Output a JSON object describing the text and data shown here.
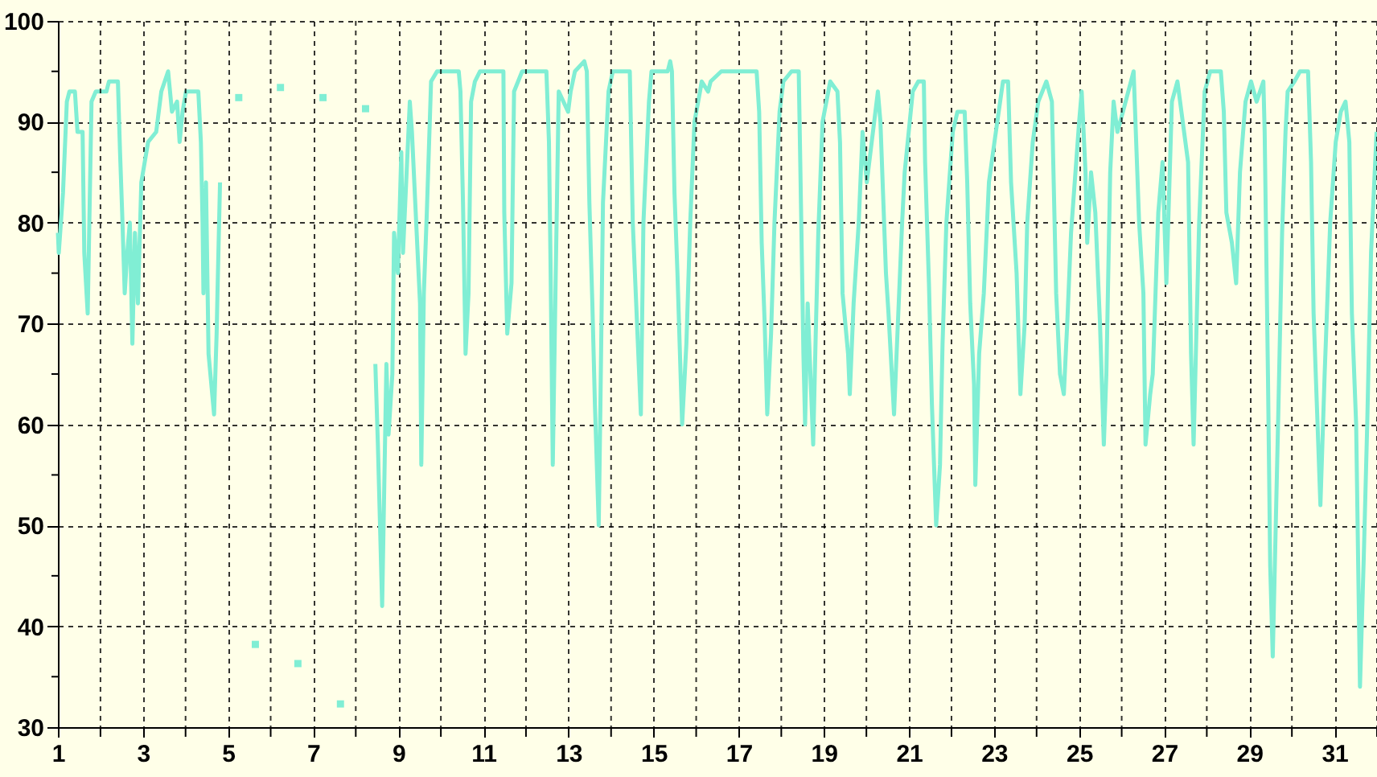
{
  "chart_data": {
    "type": "line",
    "xlim": [
      1,
      32
    ],
    "ylim": [
      30,
      100
    ],
    "xticks": [
      1,
      {
        "value": 2,
        "label": null
      },
      3,
      {
        "value": 4,
        "label": null
      },
      5,
      {
        "value": 6,
        "label": null
      },
      7,
      {
        "value": 8,
        "label": null
      },
      9,
      {
        "value": 10,
        "label": null
      },
      11,
      {
        "value": 12,
        "label": null
      },
      13,
      {
        "value": 14,
        "label": null
      },
      15,
      {
        "value": 16,
        "label": null
      },
      17,
      {
        "value": 18,
        "label": null
      },
      19,
      {
        "value": 20,
        "label": null
      },
      21,
      {
        "value": 22,
        "label": null
      },
      23,
      {
        "value": 24,
        "label": null
      },
      25,
      {
        "value": 26,
        "label": null
      },
      27,
      {
        "value": 28,
        "label": null
      },
      29,
      {
        "value": 30,
        "label": null
      },
      31,
      {
        "value": 32,
        "label": null
      }
    ],
    "yticks": [
      30,
      {
        "value": 35,
        "label": null
      },
      40,
      {
        "value": 45,
        "label": null
      },
      50,
      {
        "value": 55,
        "label": null
      },
      60,
      {
        "value": 65,
        "label": null
      },
      70,
      {
        "value": 75,
        "label": null
      },
      80,
      {
        "value": 85,
        "label": null
      },
      90,
      {
        "value": 95,
        "label": null
      },
      100
    ],
    "grid": true,
    "series": [
      {
        "color": "#80eed4",
        "x": [
          1.0,
          1.02,
          1.12,
          1.21,
          1.27,
          1.4,
          1.46,
          1.58,
          1.62,
          1.7,
          1.79,
          1.89,
          2.14,
          2.2,
          2.41,
          2.46,
          2.51,
          2.57,
          2.63,
          2.69,
          2.75,
          2.81,
          2.88,
          2.96,
          3.12,
          3.31,
          3.43,
          3.59,
          3.68,
          3.8,
          3.86,
          3.93,
          4.01,
          4.3,
          4.36,
          4.4,
          4.42,
          4.48,
          4.54,
          4.67,
          4.73,
          4.75,
          4.81,
          6.5,
          8.46,
          8.52,
          8.62,
          8.72,
          8.77,
          8.86,
          8.9,
          8.99,
          9.07,
          9.11,
          9.27,
          9.32,
          9.42,
          9.51,
          9.54,
          9.6,
          9.67,
          9.77,
          9.91,
          10.42,
          10.46,
          10.52,
          10.56,
          10.58,
          10.65,
          10.71,
          10.8,
          10.92,
          11.47,
          11.49,
          11.56,
          11.66,
          11.72,
          11.91,
          12.48,
          12.54,
          12.58,
          12.63,
          12.7,
          12.77,
          12.99,
          13.05,
          13.15,
          13.37,
          13.43,
          13.49,
          13.56,
          13.62,
          13.71,
          13.75,
          13.81,
          13.94,
          14.04,
          14.44,
          14.51,
          14.7,
          14.76,
          14.89,
          14.95,
          15.33,
          15.39,
          15.43,
          15.49,
          15.56,
          15.67,
          15.77,
          15.86,
          15.96,
          16.09,
          16.13,
          16.28,
          16.34,
          16.59,
          17.42,
          17.48,
          17.54,
          17.61,
          17.67,
          17.76,
          17.84,
          17.96,
          18.05,
          18.24,
          18.41,
          18.47,
          18.52,
          18.56,
          18.62,
          18.75,
          18.81,
          18.87,
          18.97,
          19.15,
          19.32,
          19.38,
          19.44,
          19.57,
          19.61,
          19.7,
          19.82,
          19.91,
          20.01,
          20.27,
          20.33,
          20.46,
          20.52,
          20.65,
          20.75,
          20.84,
          20.9,
          21.09,
          21.22,
          21.35,
          21.38,
          21.47,
          21.54,
          21.64,
          21.73,
          21.79,
          21.88,
          22.03,
          22.14,
          22.31,
          22.37,
          22.44,
          22.53,
          22.56,
          22.65,
          22.76,
          22.88,
          23.01,
          23.21,
          23.33,
          23.4,
          23.53,
          23.62,
          23.72,
          23.78,
          23.91,
          24.04,
          24.23,
          24.36,
          24.46,
          24.55,
          24.64,
          24.72,
          24.81,
          25.0,
          25.06,
          25.15,
          25.19,
          25.28,
          25.38,
          25.49,
          25.58,
          25.64,
          25.73,
          25.81,
          25.9,
          26.03,
          26.28,
          26.41,
          26.51,
          26.56,
          26.67,
          26.73,
          26.86,
          26.96,
          27.05,
          27.18,
          27.31,
          27.56,
          27.63,
          27.69,
          27.82,
          27.95,
          28.08,
          28.33,
          28.4,
          28.46,
          28.59,
          28.69,
          28.78,
          28.91,
          29.04,
          29.17,
          29.33,
          29.36,
          29.44,
          29.49,
          29.55,
          29.68,
          29.77,
          29.85,
          29.9,
          30.06,
          30.19,
          30.38,
          30.45,
          30.51,
          30.62,
          30.67,
          30.77,
          30.9,
          31.03,
          31.15,
          31.26,
          31.35,
          31.41,
          31.51,
          31.6,
          31.69,
          31.77,
          31.86,
          31.99
        ],
        "values": [
          79,
          77,
          83,
          92,
          93,
          93,
          89,
          89,
          77,
          71,
          92,
          93,
          93,
          94,
          94,
          87,
          81,
          73,
          77,
          80,
          68,
          79,
          72,
          84,
          88,
          89,
          93,
          95,
          91,
          92,
          88,
          91,
          93,
          93,
          88,
          80,
          73,
          84,
          67,
          61,
          69,
          73,
          84,
          null,
          66,
          58,
          42,
          66,
          59,
          65,
          79,
          75,
          87,
          77,
          92,
          89,
          80,
          72,
          56,
          73,
          81,
          94,
          95,
          95,
          93,
          82,
          72,
          67,
          73,
          92,
          94,
          95,
          95,
          81,
          69,
          74,
          93,
          95,
          95,
          88,
          75,
          56,
          75,
          93,
          91,
          93,
          95,
          96,
          95,
          82,
          72,
          62,
          50,
          62,
          82,
          93,
          95,
          95,
          80,
          61,
          80,
          92,
          95,
          95,
          96,
          95,
          83,
          75,
          60,
          68,
          80,
          90,
          93,
          94,
          93,
          94,
          95,
          95,
          91,
          78,
          70,
          61,
          69,
          80,
          91,
          94,
          95,
          95,
          80,
          67,
          60,
          72,
          58,
          69,
          79,
          90,
          94,
          93,
          88,
          73,
          67,
          63,
          72,
          80,
          89,
          84,
          93,
          90,
          75,
          71,
          61,
          71,
          80,
          85,
          93,
          94,
          94,
          86,
          74,
          62,
          50,
          56,
          68,
          80,
          89,
          91,
          91,
          84,
          72,
          64,
          54,
          67,
          73,
          84,
          88,
          94,
          94,
          84,
          75,
          63,
          70,
          80,
          88,
          92,
          94,
          92,
          73,
          65,
          63,
          70,
          79,
          90,
          93,
          85,
          78,
          85,
          81,
          70,
          58,
          65,
          85,
          92,
          89,
          91,
          95,
          80,
          73,
          58,
          63,
          65,
          81,
          86,
          74,
          92,
          94,
          86,
          67,
          58,
          80,
          93,
          95,
          95,
          91,
          81,
          78,
          74,
          85,
          92,
          94,
          92,
          94,
          89,
          64,
          46,
          37,
          61,
          79,
          89,
          93,
          94,
          95,
          95,
          86,
          71,
          58,
          52,
          65,
          80,
          88,
          91,
          92,
          88,
          71,
          60,
          34,
          47,
          60,
          77,
          89
        ]
      },
      {
        "type": "scatter",
        "marker": "square",
        "color": "#80eed4",
        "x": [
          5.25,
          5.64,
          6.23,
          6.64,
          7.23,
          7.64,
          8.23
        ],
        "values": [
          92.4,
          38.2,
          93.4,
          36.3,
          92.4,
          32.3,
          91.3
        ]
      }
    ]
  }
}
